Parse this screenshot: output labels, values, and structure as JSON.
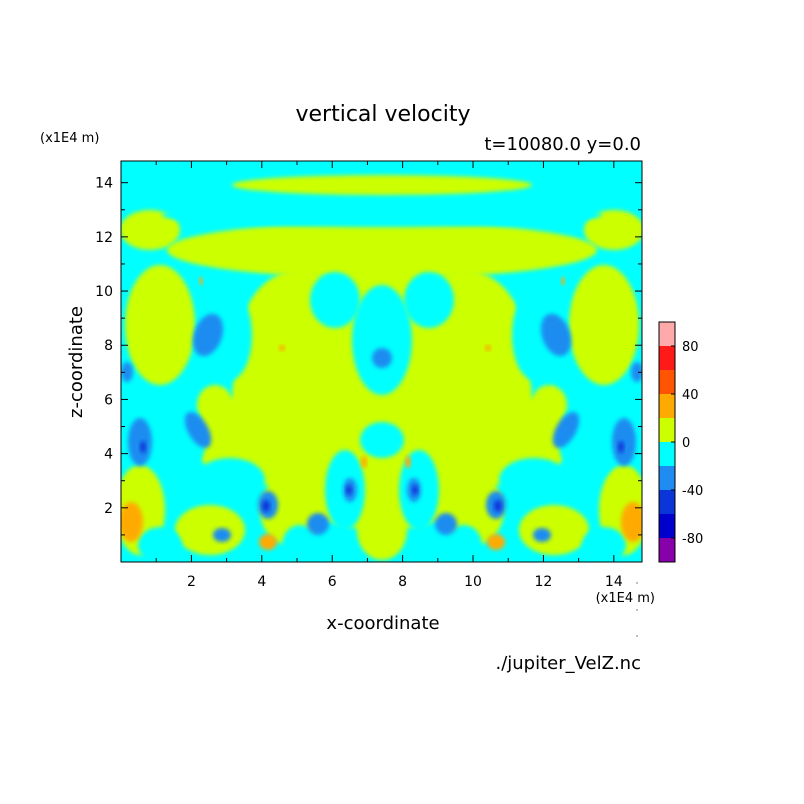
{
  "chart_data": {
    "type": "heatmap",
    "title": "vertical velocity",
    "subtitle": "t=10080.0 y=0.0",
    "xlabel": "x-coordinate",
    "ylabel": "z-coordinate",
    "x_unit": "(x1E4 m)",
    "z_unit": "(x1E4 m)",
    "source_file": "./jupiter_VelZ.nc",
    "xlim": [
      0,
      14.8
    ],
    "ylim": [
      0,
      14.8
    ],
    "x_ticks": [
      "2",
      "4",
      "6",
      "8",
      "10",
      "12",
      "14"
    ],
    "y_ticks": [
      "2",
      "4",
      "6",
      "8",
      "10",
      "12",
      "14"
    ],
    "grid": false,
    "colorbar": {
      "placement": "right",
      "min": -100,
      "max": 100,
      "step": 20,
      "tick_labels": [
        "80",
        "40",
        "0",
        "-40",
        "-80"
      ],
      "colors": [
        "#8800aa",
        "#0000cc",
        "#0a36d8",
        "#1e8cf0",
        "#00ffff",
        "#ccff00",
        "#ffaa00",
        "#ff5500",
        "#ff1a1a",
        "#ffaaaa"
      ]
    },
    "field_levels": {
      "strong_down": "#0a36d8",
      "down": "#1e8cf0",
      "weak_down": "#00ffff",
      "weak_up": "#ccff00",
      "up": "#ffaa00",
      "strong_up": "#ff5500"
    },
    "features": [
      {
        "x": 0.35,
        "z": 1.4,
        "level": "up"
      },
      {
        "x": 14.45,
        "z": 1.4,
        "level": "up"
      },
      {
        "x": 4.3,
        "z": 0.6,
        "level": "up"
      },
      {
        "x": 10.5,
        "z": 0.6,
        "level": "up"
      },
      {
        "x": 2.25,
        "z": 10.45,
        "level": "up"
      },
      {
        "x": 12.55,
        "z": 10.45,
        "level": "up"
      },
      {
        "x": 4.55,
        "z": 8.1,
        "level": "up"
      },
      {
        "x": 10.25,
        "z": 8.1,
        "level": "up"
      },
      {
        "x": 6.9,
        "z": 3.6,
        "level": "up"
      },
      {
        "x": 7.9,
        "z": 3.6,
        "level": "up"
      },
      {
        "x": 2.5,
        "z": 8.4,
        "level": "down"
      },
      {
        "x": 12.3,
        "z": 8.4,
        "level": "down"
      },
      {
        "x": 2.1,
        "z": 4.5,
        "level": "down"
      },
      {
        "x": 12.7,
        "z": 4.5,
        "level": "down"
      },
      {
        "x": 0.65,
        "z": 4.5,
        "level": "down"
      },
      {
        "x": 14.15,
        "z": 4.5,
        "level": "down"
      },
      {
        "x": 4.2,
        "z": 2.2,
        "level": "down"
      },
      {
        "x": 10.6,
        "z": 2.2,
        "level": "down"
      },
      {
        "x": 5.6,
        "z": 1.4,
        "level": "down"
      },
      {
        "x": 9.2,
        "z": 1.4,
        "level": "down"
      },
      {
        "x": 6.6,
        "z": 2.7,
        "level": "down"
      },
      {
        "x": 8.2,
        "z": 2.7,
        "level": "down"
      },
      {
        "x": 7.4,
        "z": 7.6,
        "level": "down"
      },
      {
        "x": 2.8,
        "z": 0.9,
        "level": "down"
      },
      {
        "x": 12.0,
        "z": 0.9,
        "level": "down"
      },
      {
        "x": 0.25,
        "z": 7.2,
        "level": "down"
      },
      {
        "x": 14.55,
        "z": 7.2,
        "level": "down"
      },
      {
        "x": 4.2,
        "z": 2.1,
        "level": "strong_down"
      },
      {
        "x": 10.6,
        "z": 2.1,
        "level": "strong_down"
      },
      {
        "x": 6.5,
        "z": 2.7,
        "level": "strong_down"
      },
      {
        "x": 8.3,
        "z": 2.7,
        "level": "strong_down"
      },
      {
        "x": 0.75,
        "z": 4.2,
        "level": "strong_down"
      },
      {
        "x": 14.05,
        "z": 4.2,
        "level": "strong_down"
      }
    ]
  }
}
